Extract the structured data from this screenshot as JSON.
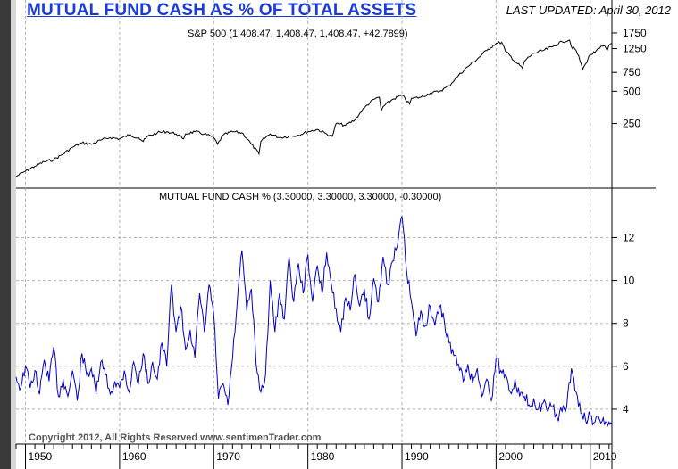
{
  "header": {
    "title": "MUTUAL FUND CASH AS % OF TOTAL ASSETS",
    "updated_label": "LAST UPDATED:",
    "updated_date": "April 30, 2012"
  },
  "copyright": "Copyright 2012, All Rights Reserved  www.sentimenTrader.com",
  "colors": {
    "title": "#1a3adb",
    "sp500_line": "#000000",
    "cash_line": "#0000cc",
    "grid": "#b0b0b0"
  },
  "chart_data": [
    {
      "type": "line",
      "legend": "S&P 500 (1,408.47, 1,408.47, 1,408.47, +42.7899)",
      "yscale": "log",
      "ylim": [
        70,
        2000
      ],
      "yticks": [
        250,
        500,
        750,
        1250,
        1750
      ],
      "xlim": [
        1949,
        2012.3
      ],
      "series": [
        {
          "name": "S&P 500",
          "x": [
            1949.0,
            1950.0,
            1951.0,
            1952.0,
            1953.0,
            1954.0,
            1955.0,
            1956.0,
            1957.0,
            1958.0,
            1959.0,
            1960.0,
            1961.0,
            1962.0,
            1962.5,
            1963.0,
            1964.0,
            1965.0,
            1966.0,
            1966.8,
            1967.0,
            1968.0,
            1969.0,
            1970.0,
            1970.4,
            1971.0,
            1972.0,
            1973.0,
            1974.0,
            1974.8,
            1975.0,
            1976.0,
            1977.0,
            1978.0,
            1979.0,
            1980.0,
            1981.0,
            1982.0,
            1982.6,
            1983.0,
            1984.0,
            1985.0,
            1986.0,
            1987.0,
            1987.6,
            1987.8,
            1988.0,
            1989.0,
            1990.0,
            1990.8,
            1991.0,
            1992.0,
            1993.0,
            1994.0,
            1995.0,
            1996.0,
            1997.0,
            1998.0,
            1999.0,
            2000.0,
            2000.6,
            2001.0,
            2002.0,
            2002.8,
            2003.0,
            2004.0,
            2005.0,
            2006.0,
            2007.0,
            2007.8,
            2008.0,
            2008.5,
            2009.2,
            2009.5,
            2010.0,
            2010.5,
            2011.0,
            2011.5,
            2011.8,
            2012.0,
            2012.3
          ],
          "y": [
            80,
            90,
            100,
            110,
            115,
            130,
            150,
            165,
            160,
            175,
            185,
            180,
            195,
            185,
            170,
            190,
            205,
            210,
            200,
            180,
            200,
            210,
            200,
            185,
            160,
            195,
            210,
            205,
            160,
            130,
            170,
            200,
            185,
            190,
            195,
            210,
            220,
            200,
            190,
            250,
            240,
            270,
            350,
            420,
            440,
            330,
            360,
            420,
            460,
            380,
            430,
            440,
            480,
            500,
            560,
            700,
            850,
            1000,
            1200,
            1400,
            1430,
            1180,
            950,
            820,
            950,
            1130,
            1200,
            1300,
            1450,
            1500,
            1300,
            1200,
            800,
            900,
            1100,
            1150,
            1260,
            1340,
            1200,
            1350,
            1408
          ]
        }
      ]
    },
    {
      "type": "line",
      "legend": "MUTUAL FUND CASH % (3.30000, 3.30000, 3.30000, -0.30000)",
      "ylim": [
        2.5,
        13.6
      ],
      "yticks": [
        4,
        6,
        8,
        10,
        12
      ],
      "xlim": [
        1949,
        2012.3
      ],
      "xticks": [
        1950,
        1960,
        1970,
        1980,
        1990,
        2000,
        2010
      ],
      "series": [
        {
          "name": "MUTUAL FUND CASH %",
          "x": [
            1949.0,
            1949.5,
            1950.0,
            1950.5,
            1951.0,
            1951.5,
            1952.0,
            1952.5,
            1953.0,
            1953.5,
            1954.0,
            1954.5,
            1955.0,
            1955.5,
            1956.0,
            1956.5,
            1957.0,
            1957.5,
            1958.0,
            1958.5,
            1959.0,
            1959.5,
            1960.0,
            1960.5,
            1961.0,
            1961.5,
            1962.0,
            1962.5,
            1963.0,
            1963.5,
            1964.0,
            1964.5,
            1965.0,
            1965.5,
            1966.0,
            1966.5,
            1967.0,
            1967.5,
            1968.0,
            1968.5,
            1969.0,
            1969.5,
            1970.0,
            1970.5,
            1971.0,
            1971.5,
            1972.0,
            1972.5,
            1973.0,
            1973.5,
            1974.0,
            1974.5,
            1975.0,
            1975.5,
            1976.0,
            1976.5,
            1977.0,
            1977.5,
            1978.0,
            1978.5,
            1979.0,
            1979.5,
            1980.0,
            1980.5,
            1981.0,
            1981.5,
            1982.0,
            1982.5,
            1983.0,
            1983.5,
            1984.0,
            1984.5,
            1985.0,
            1985.5,
            1986.0,
            1986.5,
            1987.0,
            1987.5,
            1988.0,
            1988.5,
            1989.0,
            1989.5,
            1990.0,
            1990.5,
            1991.0,
            1991.5,
            1992.0,
            1992.5,
            1993.0,
            1993.5,
            1994.0,
            1994.5,
            1995.0,
            1995.5,
            1996.0,
            1996.5,
            1997.0,
            1997.5,
            1998.0,
            1998.5,
            1999.0,
            1999.5,
            2000.0,
            2000.5,
            2001.0,
            2001.5,
            2002.0,
            2002.5,
            2003.0,
            2003.5,
            2004.0,
            2004.5,
            2005.0,
            2005.5,
            2006.0,
            2006.5,
            2007.0,
            2007.5,
            2008.0,
            2008.5,
            2009.0,
            2009.5,
            2010.0,
            2010.5,
            2011.0,
            2011.5,
            2012.0,
            2012.3
          ],
          "y": [
            5.5,
            5.0,
            6.0,
            5.0,
            5.8,
            4.7,
            6.3,
            5.3,
            6.9,
            4.6,
            5.4,
            4.6,
            5.8,
            4.4,
            6.6,
            5.6,
            5.9,
            4.7,
            6.2,
            5.6,
            4.7,
            5.3,
            5.0,
            5.8,
            4.8,
            6.2,
            5.2,
            6.6,
            5.2,
            6.2,
            5.4,
            7.1,
            6.0,
            9.8,
            7.6,
            8.8,
            6.8,
            7.7,
            6.4,
            9.4,
            7.6,
            9.8,
            8.4,
            4.5,
            5.2,
            4.2,
            6.4,
            9.0,
            11.4,
            8.6,
            9.6,
            6.1,
            4.8,
            5.6,
            10.0,
            7.6,
            9.4,
            8.2,
            11.1,
            9.0,
            10.8,
            9.4,
            11.2,
            9.0,
            10.7,
            9.4,
            11.3,
            9.8,
            8.7,
            7.6,
            9.2,
            8.6,
            10.3,
            8.8,
            9.6,
            8.2,
            10.1,
            9.0,
            11.1,
            9.8,
            10.9,
            11.6,
            13.0,
            10.4,
            9.0,
            7.4,
            8.6,
            7.9,
            8.8,
            7.9,
            8.8,
            8.1,
            7.1,
            6.5,
            6.1,
            5.3,
            6.1,
            5.2,
            5.9,
            4.6,
            5.4,
            4.4,
            6.4,
            5.8,
            5.6,
            4.8,
            5.4,
            4.6,
            4.6,
            4.2,
            4.5,
            4.0,
            4.3,
            3.9,
            4.1,
            3.6,
            3.9,
            4.1,
            5.9,
            4.8,
            3.8,
            3.5,
            3.7,
            3.4,
            3.5,
            3.3,
            3.4,
            3.3
          ]
        }
      ]
    }
  ]
}
